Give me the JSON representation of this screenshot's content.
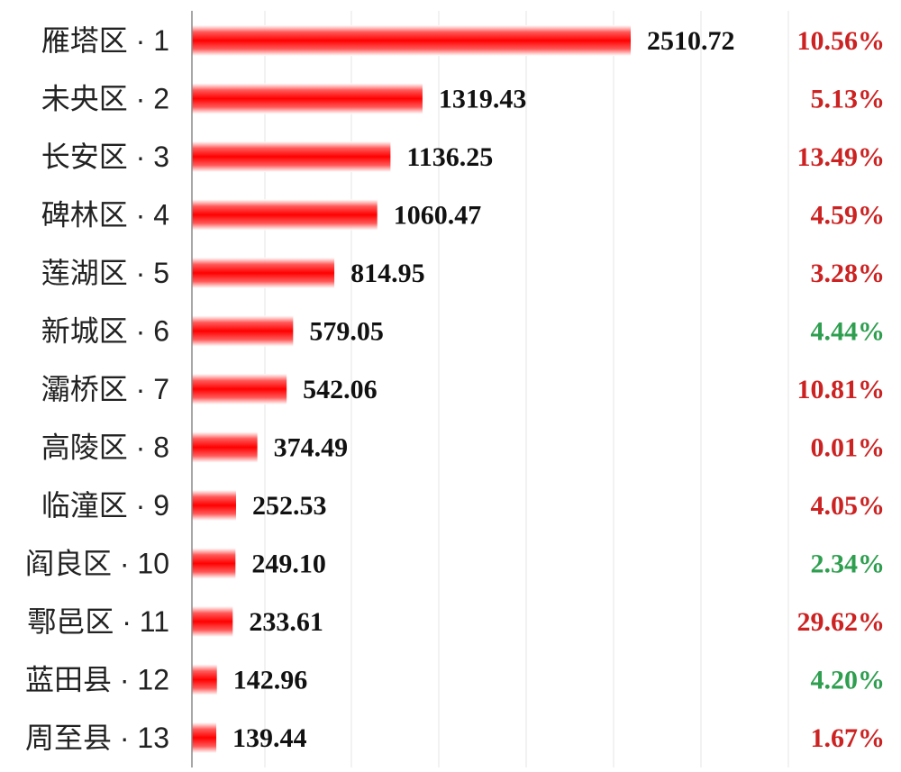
{
  "chart_data": {
    "type": "bar",
    "orientation": "horizontal",
    "categories": [
      "雁塔区 · 1",
      "未央区 · 2",
      "长安区 · 3",
      "碑林区 · 4",
      "莲湖区 · 5",
      "新城区 · 6",
      "灞桥区 · 7",
      "高陵区 · 8",
      "临潼区 · 9",
      "阎良区 · 10",
      "鄠邑区 · 11",
      "蓝田县 · 12",
      "周至县 · 13"
    ],
    "values": [
      2510.72,
      1319.43,
      1136.25,
      1060.47,
      814.95,
      579.05,
      542.06,
      374.49,
      252.53,
      249.1,
      233.61,
      142.96,
      139.44
    ],
    "value_labels": [
      "2510.72",
      "1319.43",
      "1136.25",
      "1060.47",
      "814.95",
      "579.05",
      "542.06",
      "374.49",
      "252.53",
      "249.10",
      "233.61",
      "142.96",
      "139.44"
    ],
    "growth_rates": [
      "10.56%",
      "5.13%",
      "13.49%",
      "4.59%",
      "3.28%",
      "4.44%",
      "10.81%",
      "0.01%",
      "4.05%",
      "2.34%",
      "29.62%",
      "4.20%",
      "1.67%"
    ],
    "growth_colors": [
      "#cc2222",
      "#cc2222",
      "#cc2222",
      "#cc2222",
      "#cc2222",
      "#2e9e4f",
      "#cc2222",
      "#cc2222",
      "#cc2222",
      "#2e9e4f",
      "#cc2222",
      "#2e9e4f",
      "#cc2222"
    ],
    "bar_color": "#ff1a1a",
    "grid": true,
    "title": "",
    "xlabel": "",
    "ylabel": ""
  }
}
